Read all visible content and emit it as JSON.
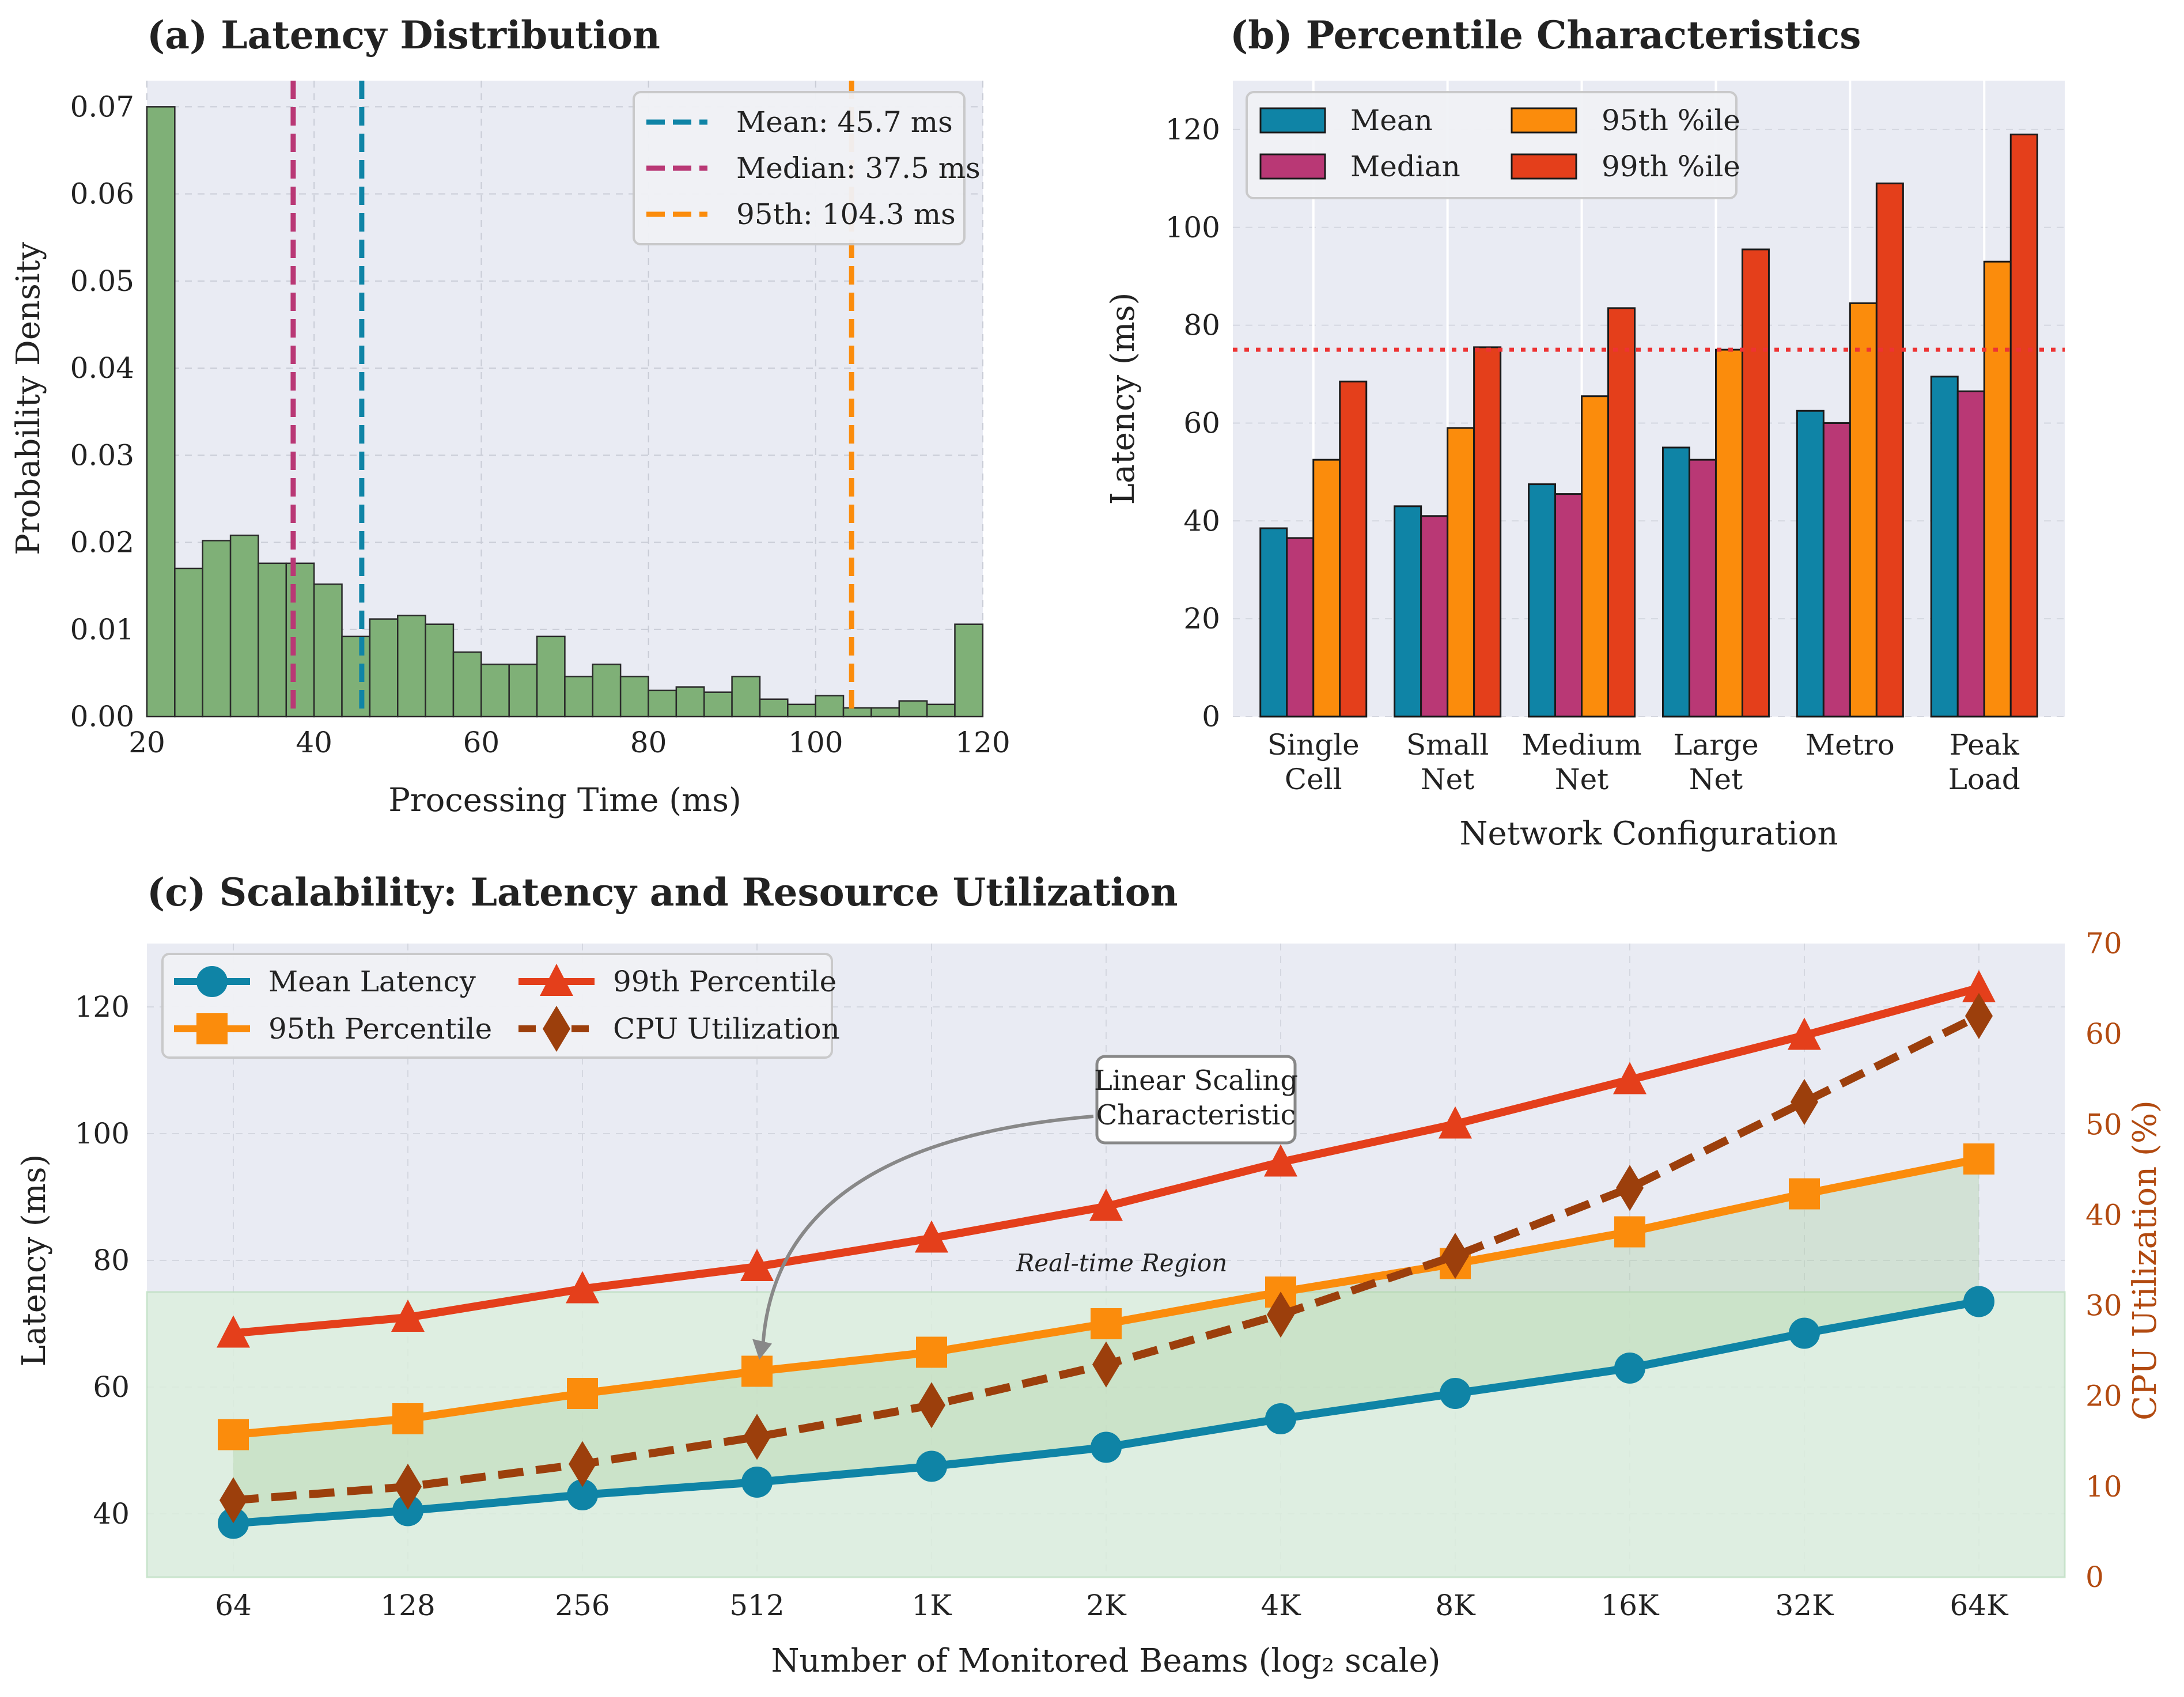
{
  "colors": {
    "mean": "#0f84a6",
    "median": "#b93875",
    "p95": "#fb8c0c",
    "p99": "#e43f1b",
    "cpu": "#9c3f0c",
    "hist_fill": "#7fb077",
    "hist_edge": "#2a2a2a",
    "axes_bg": "#e9ebf3",
    "threshold": "#ee3333",
    "region_fill": "#dcefdd",
    "region_text": "#22aa55",
    "cpu_axis": "#b24a10",
    "annotation": "#888888"
  },
  "chart_data": [
    {
      "id": "a",
      "type": "bar",
      "title": "(a) Latency Distribution",
      "xlabel": "Processing Time (ms)",
      "ylabel": "Probability Density",
      "xlim": [
        20,
        120
      ],
      "ylim": [
        0,
        0.073
      ],
      "xticks": [
        20,
        40,
        60,
        80,
        100,
        120
      ],
      "xtick_labels": [
        "20",
        "40",
        "60",
        "80",
        "100",
        "120"
      ],
      "yticks": [
        0,
        0.01,
        0.02,
        0.03,
        0.04,
        0.05,
        0.06,
        0.07
      ],
      "ytick_labels": [
        "0.00",
        "0.01",
        "0.02",
        "0.03",
        "0.04",
        "0.05",
        "0.06",
        "0.07"
      ],
      "grid": true,
      "legend_position": "top-right",
      "bin_edges_start": 20,
      "bin_width": 3.333,
      "densities": [
        0.07,
        0.017,
        0.0202,
        0.0208,
        0.0176,
        0.0176,
        0.0152,
        0.0092,
        0.0112,
        0.0116,
        0.0106,
        0.0074,
        0.006,
        0.006,
        0.0092,
        0.0046,
        0.006,
        0.0046,
        0.003,
        0.0034,
        0.0028,
        0.0046,
        0.002,
        0.0014,
        0.0024,
        0.001,
        0.001,
        0.0018,
        0.0014,
        0.0106
      ],
      "reference_lines": [
        {
          "label": "Mean: 45.7 ms",
          "value": 45.7,
          "color_key": "mean"
        },
        {
          "label": "Median: 37.5 ms",
          "value": 37.5,
          "color_key": "median"
        },
        {
          "label": "95th: 104.3 ms",
          "value": 104.3,
          "color_key": "p95"
        }
      ]
    },
    {
      "id": "b",
      "type": "bar",
      "title": "(b) Percentile Characteristics",
      "xlabel": "Network Configuration",
      "ylabel": "Latency (ms)",
      "ylim": [
        0,
        130
      ],
      "yticks": [
        0,
        20,
        40,
        60,
        80,
        100,
        120
      ],
      "ytick_labels": [
        "0",
        "20",
        "40",
        "60",
        "80",
        "100",
        "120"
      ],
      "grid": true,
      "legend_position": "top-left",
      "categories": [
        [
          "Single",
          "Cell"
        ],
        [
          "Small",
          "Net"
        ],
        [
          "Medium",
          "Net"
        ],
        [
          "Large",
          "Net"
        ],
        [
          "Metro"
        ],
        [
          "Peak",
          "Load"
        ]
      ],
      "series": [
        {
          "name": "Mean",
          "color_key": "mean",
          "values": [
            38.5,
            43,
            47.5,
            55,
            62.5,
            69.5
          ]
        },
        {
          "name": "Median",
          "color_key": "median",
          "values": [
            36.5,
            41,
            45.5,
            52.5,
            60,
            66.5
          ]
        },
        {
          "name": "95th %ile",
          "color_key": "p95",
          "values": [
            52.5,
            59,
            65.5,
            75,
            84.5,
            93
          ]
        },
        {
          "name": "99th %ile",
          "color_key": "p99",
          "values": [
            68.5,
            75.5,
            83.5,
            95.5,
            109,
            119
          ]
        }
      ],
      "threshold": 75
    },
    {
      "id": "c",
      "type": "line",
      "title": "(c) Scalability: Latency and Resource Utilization",
      "xlabel": "Number of Monitored Beams (log₂ scale)",
      "ylabel": "Latency (ms)",
      "y2label": "CPU Utilization (%)",
      "categories": [
        "64",
        "128",
        "256",
        "512",
        "1K",
        "2K",
        "4K",
        "8K",
        "16K",
        "32K",
        "64K"
      ],
      "ylim": [
        30,
        130
      ],
      "yticks": [
        40,
        60,
        80,
        100,
        120
      ],
      "ytick_labels": [
        "40",
        "60",
        "80",
        "100",
        "120"
      ],
      "y2lim": [
        0,
        70
      ],
      "y2ticks": [
        0,
        10,
        20,
        30,
        40,
        50,
        60,
        70
      ],
      "y2tick_labels": [
        "0",
        "10",
        "20",
        "30",
        "40",
        "50",
        "60",
        "70"
      ],
      "grid": true,
      "legend_position": "top-left",
      "series": [
        {
          "name": "Mean Latency",
          "axis": "left",
          "color_key": "mean",
          "marker": "circle",
          "dash": false,
          "values": [
            38.5,
            40.5,
            43,
            45,
            47.5,
            50.5,
            55,
            59,
            63,
            68.5,
            73.5
          ]
        },
        {
          "name": "95th Percentile",
          "axis": "left",
          "color_key": "p95",
          "marker": "square",
          "dash": false,
          "values": [
            52.5,
            55,
            59,
            62.5,
            65.5,
            70,
            75,
            79.5,
            84.5,
            90.5,
            96
          ]
        },
        {
          "name": "99th Percentile",
          "axis": "left",
          "color_key": "p99",
          "marker": "triangle",
          "dash": false,
          "values": [
            68.5,
            71,
            75.5,
            79,
            83.5,
            88.5,
            95.5,
            101.5,
            108.5,
            115.5,
            123
          ]
        },
        {
          "name": "CPU Utilization",
          "axis": "right",
          "color_key": "cpu",
          "marker": "diamond",
          "dash": true,
          "values": [
            8.5,
            10,
            12.5,
            15.5,
            19,
            23.5,
            29,
            35.5,
            43,
            52.5,
            62
          ]
        }
      ],
      "region": {
        "label": "Real-time Region",
        "ymax": 75
      },
      "annotation": {
        "text": [
          "Linear Scaling",
          "Characteristic"
        ],
        "target_index": 3,
        "target_value": 62.5
      }
    }
  ]
}
